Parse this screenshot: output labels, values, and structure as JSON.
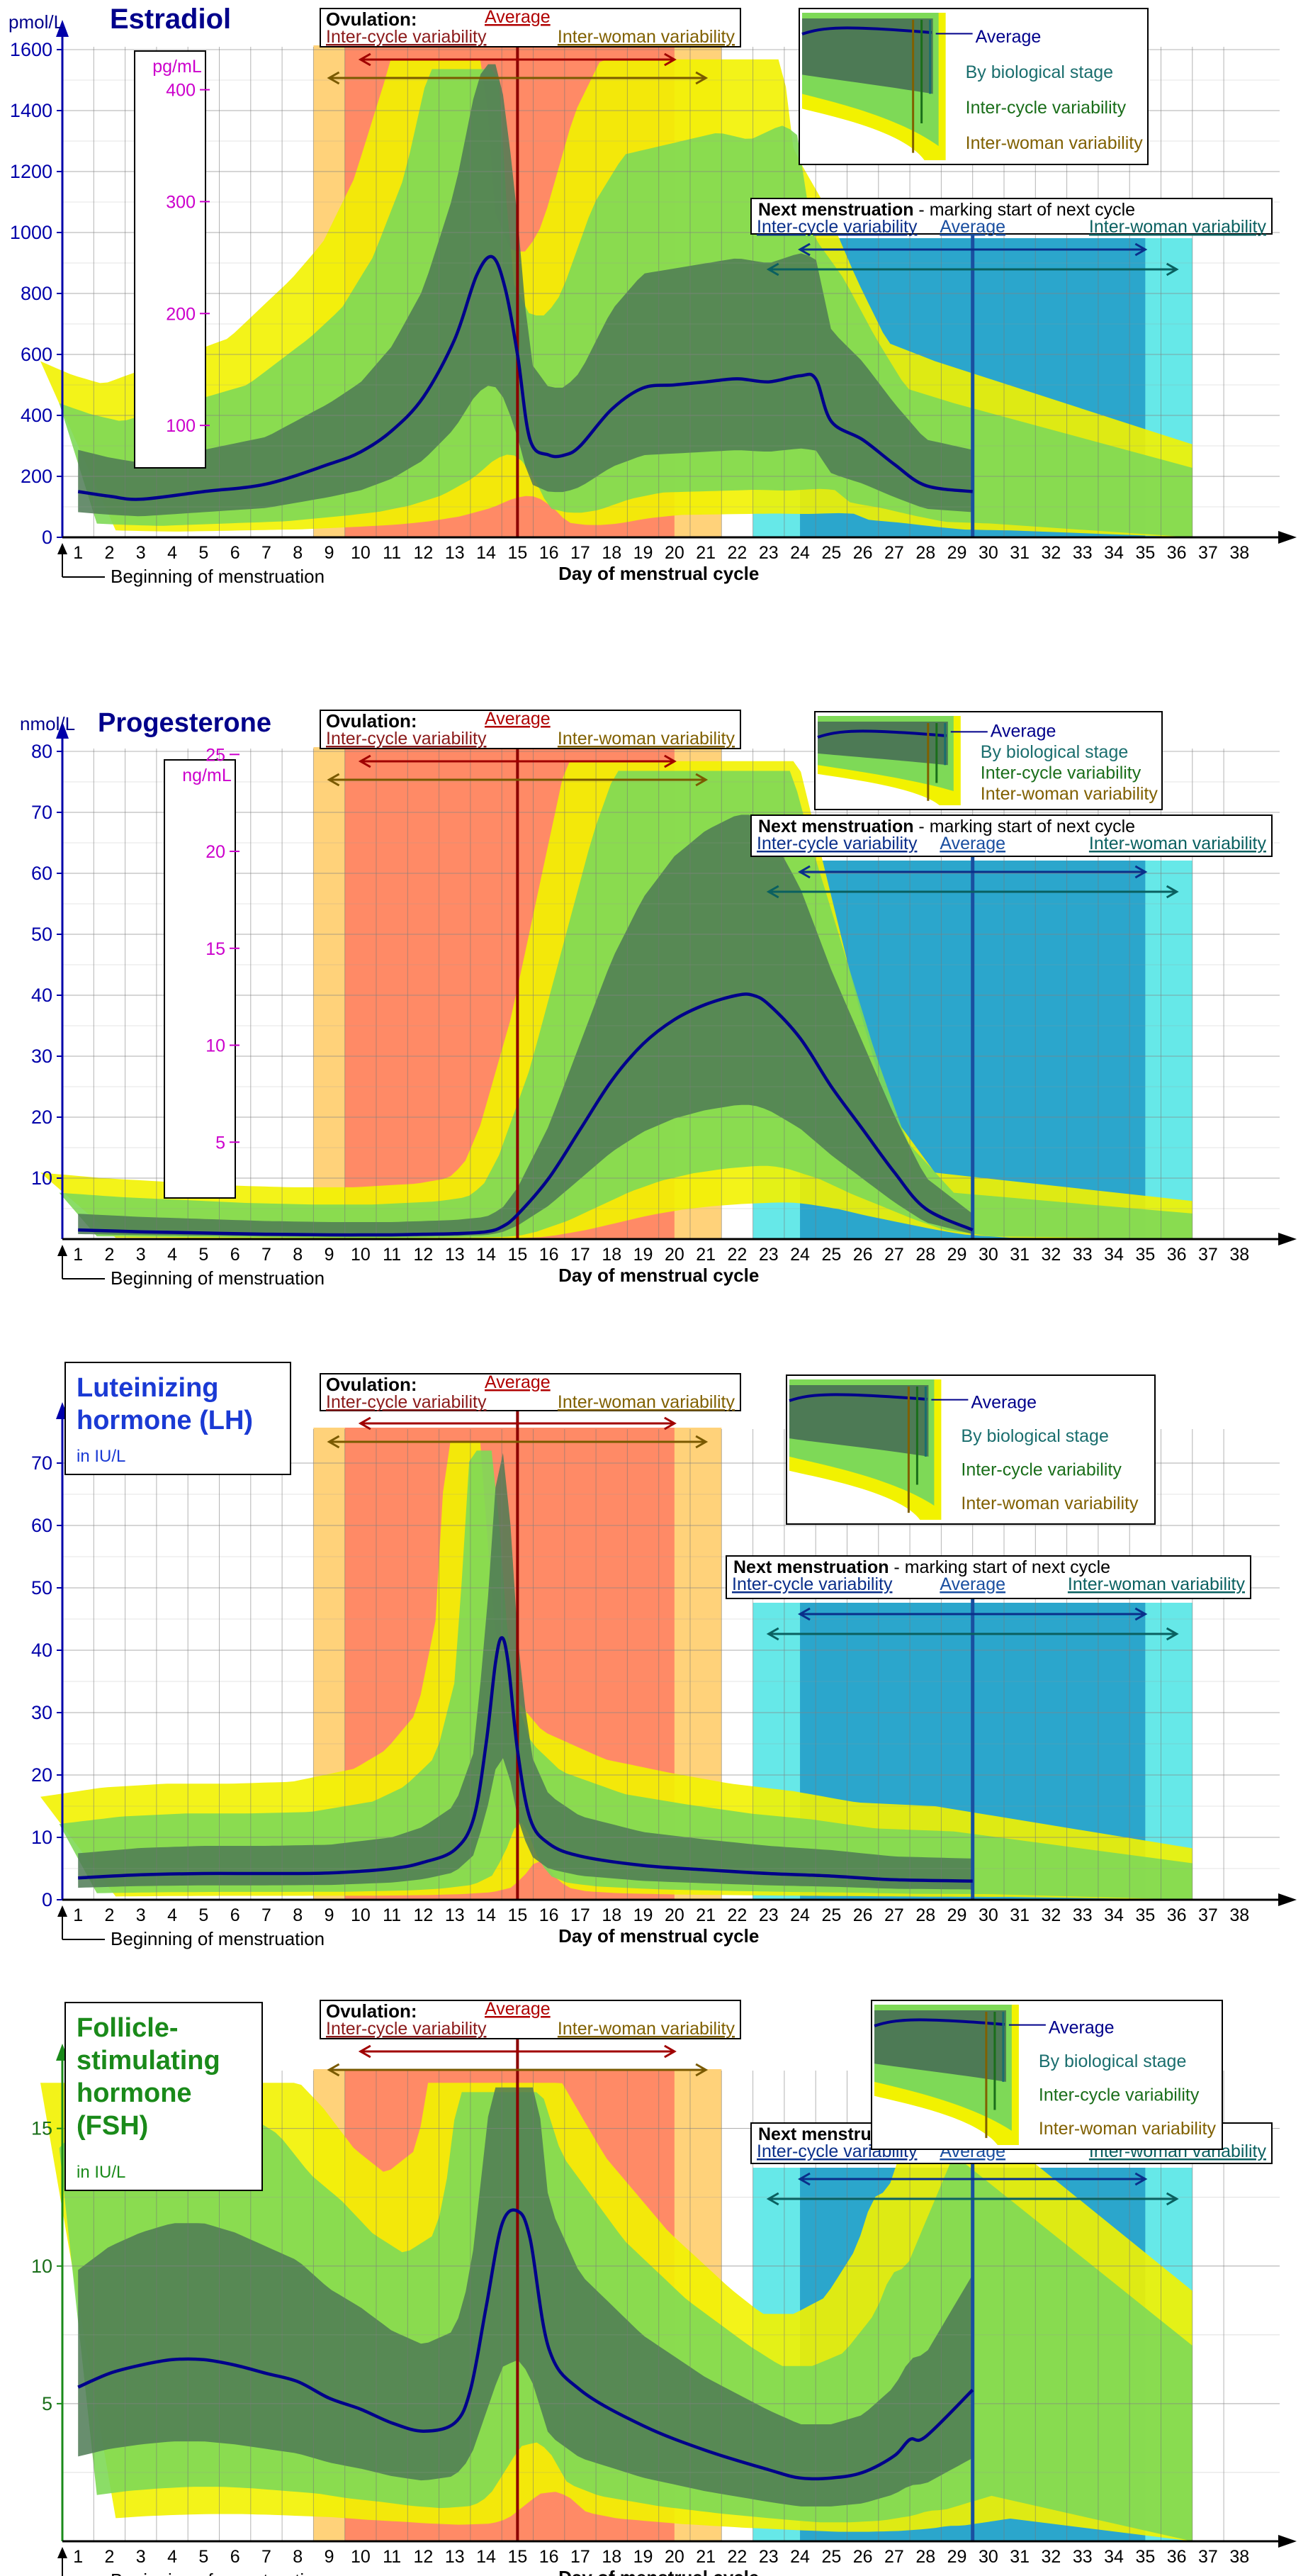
{
  "common": {
    "x_label": "Day of menstrual cycle",
    "beginning_label": "Beginning of menstruation",
    "days": [
      "1",
      "2",
      "3",
      "4",
      "5",
      "6",
      "7",
      "8",
      "9",
      "10",
      "11",
      "12",
      "13",
      "14",
      "15",
      "16",
      "17",
      "18",
      "19",
      "20",
      "21",
      "22",
      "23",
      "24",
      "25",
      "26",
      "27",
      "28",
      "29",
      "30",
      "31",
      "32",
      "33",
      "34",
      "35",
      "36",
      "37",
      "38"
    ],
    "ovulation": {
      "title": "Ovulation:",
      "average": "Average",
      "inter_cycle": "Inter-cycle variability",
      "inter_woman": "Inter-woman variability",
      "avg_day": 15,
      "inter_cycle_range": [
        10,
        20
      ],
      "inter_woman_range": [
        9,
        21
      ]
    },
    "next_menstruation": {
      "title": "Next menstruation",
      "subtitle": " - marking start of next cycle",
      "inter_cycle": "Inter-cycle variability",
      "average": "Average",
      "inter_woman": "Inter-woman variability",
      "avg_day": 29.5,
      "inter_cycle_range": [
        24,
        35
      ],
      "inter_woman_range": [
        23,
        36
      ]
    },
    "legend_labels": {
      "average": "Average",
      "biological": "By biological stage",
      "inter_cycle": "Inter-cycle variability",
      "inter_woman": "Inter-woman variability"
    },
    "colors": {
      "average": "#00008b",
      "stage_band": "#4d7a55",
      "cycle_band": "#7ed957",
      "woman_band": "#f2f200",
      "ovu_cycle": "#ff8a66",
      "ovu_woman": "#ffd27a",
      "menses_cycle": "#2ba6cc",
      "menses_woman": "#66e8e8",
      "axis": "#0000aa",
      "secondary_axis": "#cc00cc"
    }
  },
  "chart_data": [
    {
      "type": "line",
      "title": "Estradiol",
      "unit_label": "pmol/L",
      "ylim": [
        0,
        1600
      ],
      "yticks": [
        0,
        200,
        400,
        600,
        800,
        1000,
        1200,
        1400,
        1600
      ],
      "secondary_axis": {
        "unit": "pg/mL",
        "ticks": [
          100,
          200,
          300,
          400
        ],
        "factor": 3.671
      },
      "series": [
        {
          "name": "Average",
          "x": [
            1,
            2,
            3,
            5,
            7,
            9,
            10,
            11,
            12,
            13,
            13.7,
            14.2,
            14.6,
            15,
            15.4,
            16,
            16.5,
            17,
            18,
            19,
            20,
            21,
            22,
            23,
            24,
            24.5,
            25,
            26,
            27,
            28,
            29.5
          ],
          "y": [
            150,
            135,
            125,
            150,
            175,
            240,
            280,
            350,
            460,
            650,
            860,
            920,
            820,
            600,
            320,
            270,
            270,
            300,
            420,
            490,
            500,
            510,
            520,
            510,
            530,
            520,
            380,
            320,
            240,
            170,
            150
          ]
        }
      ]
    },
    {
      "type": "line",
      "title": "Progesterone",
      "unit_label": "nmol/L",
      "ylim": [
        0,
        80
      ],
      "yticks": [
        10,
        20,
        30,
        40,
        50,
        60,
        70,
        80
      ],
      "secondary_axis": {
        "unit": "ng/mL",
        "ticks": [
          5,
          10,
          15,
          20,
          25
        ],
        "factor": 3.18
      },
      "series": [
        {
          "name": "Average",
          "x": [
            1,
            3,
            5,
            7,
            9,
            11,
            12,
            13,
            14,
            14.5,
            15,
            16,
            17,
            18,
            19,
            20,
            21,
            22,
            22.5,
            23,
            24,
            25,
            26,
            27,
            28,
            29.5
          ],
          "y": [
            1.5,
            1.2,
            1,
            0.8,
            0.7,
            0.7,
            0.8,
            0.9,
            1.2,
            2,
            4,
            10,
            18,
            26,
            32,
            36,
            38.5,
            40,
            40,
            38.5,
            33,
            25,
            18,
            11,
            5,
            1.5
          ]
        }
      ]
    },
    {
      "type": "line",
      "title": "Luteinizing hormone (LH)",
      "title_lines": [
        "Luteinizing",
        "hormone (LH)"
      ],
      "unit_label": "in IU/L",
      "ylim": [
        0,
        75
      ],
      "yticks": [
        0,
        10,
        20,
        30,
        40,
        50,
        60,
        70
      ],
      "secondary_axis": null,
      "series": [
        {
          "name": "Average",
          "x": [
            1,
            3,
            5,
            7,
            9,
            11,
            12,
            13,
            13.6,
            14,
            14.3,
            14.5,
            14.7,
            15,
            15.4,
            16,
            17,
            19,
            21,
            23,
            25,
            27,
            29.5
          ],
          "y": [
            3.5,
            4,
            4.2,
            4.2,
            4.3,
            5,
            6,
            8,
            13,
            25,
            38,
            42,
            38,
            24,
            13,
            9,
            7,
            5.5,
            4.8,
            4.2,
            3.8,
            3.2,
            3
          ]
        }
      ]
    },
    {
      "type": "line",
      "title": "Follicle-stimulating hormone (FSH)",
      "title_lines": [
        "Follicle-",
        "stimulating",
        "hormone",
        "(FSH)"
      ],
      "unit_label": "in IU/L",
      "ylim": [
        0,
        17
      ],
      "yticks": [
        5,
        10,
        15
      ],
      "secondary_axis": null,
      "series": [
        {
          "name": "Average",
          "x": [
            1,
            2,
            3,
            4,
            5,
            6,
            7,
            8,
            9,
            10,
            11,
            12,
            13,
            13.5,
            14,
            14.5,
            15,
            15.4,
            16,
            17,
            19,
            21,
            23,
            24,
            25,
            26,
            27,
            27.5,
            28,
            29.5
          ],
          "y": [
            5.6,
            6.1,
            6.4,
            6.6,
            6.6,
            6.4,
            6.1,
            5.8,
            5.2,
            4.8,
            4.3,
            4,
            4.3,
            5.5,
            8.5,
            11.5,
            12,
            11,
            7,
            5.5,
            4.2,
            3.3,
            2.6,
            2.3,
            2.3,
            2.5,
            3.1,
            3.7,
            3.8,
            5.5
          ]
        }
      ]
    }
  ]
}
